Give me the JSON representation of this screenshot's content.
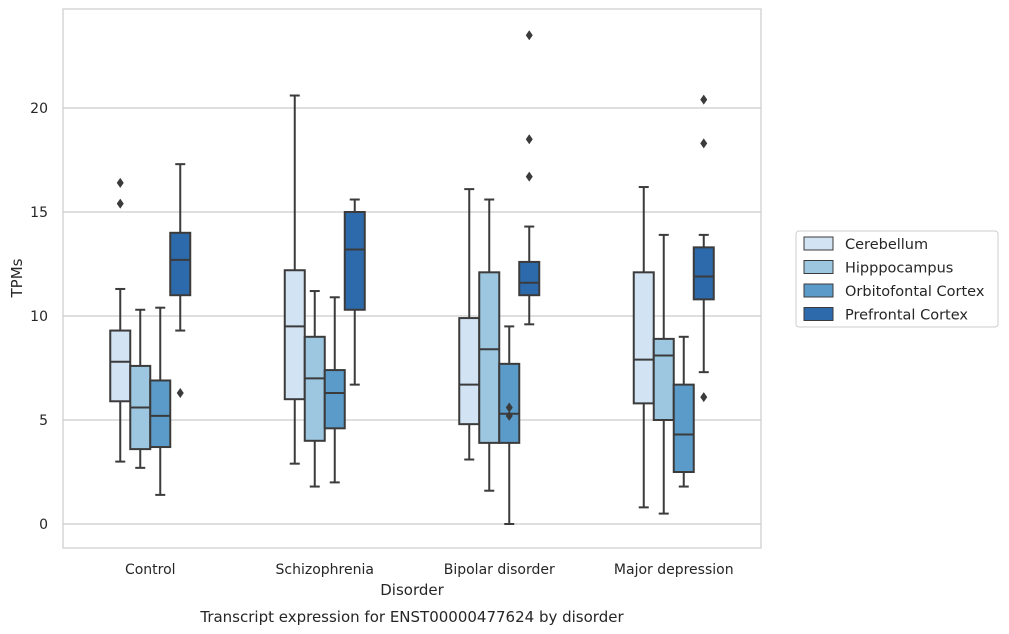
{
  "chart_data": {
    "type": "boxplot",
    "title": "Transcript expression for ENST00000477624 by disorder",
    "xlabel": "Disorder",
    "ylabel": "TPMs",
    "ylim": [
      -1.1,
      24.8
    ],
    "yticks": [
      0,
      5,
      10,
      15,
      20
    ],
    "grid": true,
    "legend_position": "right",
    "categories": [
      "Control",
      "Schizophrenia",
      "Bipolar disorder",
      "Major depression"
    ],
    "series": [
      {
        "name": "Cerebellum",
        "color": "#d2e3f3",
        "boxes": [
          {
            "whislo": 3.0,
            "q1": 5.9,
            "med": 7.8,
            "q3": 9.3,
            "whishi": 11.3,
            "fliers": [
              15.4,
              16.4
            ]
          },
          {
            "whislo": 2.9,
            "q1": 6.0,
            "med": 9.5,
            "q3": 12.2,
            "whishi": 20.6,
            "fliers": []
          },
          {
            "whislo": 3.1,
            "q1": 4.8,
            "med": 6.7,
            "q3": 9.9,
            "whishi": 16.1,
            "fliers": []
          },
          {
            "whislo": 0.8,
            "q1": 5.8,
            "med": 7.9,
            "q3": 12.1,
            "whishi": 16.2,
            "fliers": []
          }
        ]
      },
      {
        "name": "Hipppocampus",
        "color": "#9dc7e0",
        "boxes": [
          {
            "whislo": 2.7,
            "q1": 3.6,
            "med": 5.6,
            "q3": 7.6,
            "whishi": 10.3,
            "fliers": []
          },
          {
            "whislo": 1.8,
            "q1": 4.0,
            "med": 7.0,
            "q3": 9.0,
            "whishi": 11.2,
            "fliers": []
          },
          {
            "whislo": 1.6,
            "q1": 3.9,
            "med": 8.4,
            "q3": 12.1,
            "whishi": 15.6,
            "fliers": []
          },
          {
            "whislo": 0.5,
            "q1": 5.0,
            "med": 8.1,
            "q3": 8.9,
            "whishi": 13.9,
            "fliers": []
          }
        ]
      },
      {
        "name": "Orbitofontal Cortex",
        "color": "#5a9bc9",
        "boxes": [
          {
            "whislo": 1.4,
            "q1": 3.7,
            "med": 5.2,
            "q3": 6.9,
            "whishi": 10.4,
            "fliers": []
          },
          {
            "whislo": 2.0,
            "q1": 4.6,
            "med": 6.3,
            "q3": 7.4,
            "whishi": 10.9,
            "fliers": []
          },
          {
            "whislo": 0.0,
            "q1": 3.9,
            "med": 5.3,
            "q3": 7.7,
            "whishi": 9.5,
            "fliers": [
              5.2,
              5.6
            ]
          },
          {
            "whislo": 1.8,
            "q1": 2.5,
            "med": 4.3,
            "q3": 6.7,
            "whishi": 9.0,
            "fliers": []
          }
        ]
      },
      {
        "name": "Prefrontal Cortex",
        "color": "#2d6aab",
        "boxes": [
          {
            "whislo": 9.3,
            "q1": 11.0,
            "med": 12.7,
            "q3": 14.0,
            "whishi": 17.3,
            "fliers": [
              6.3
            ]
          },
          {
            "whislo": 6.7,
            "q1": 10.3,
            "med": 13.2,
            "q3": 15.0,
            "whishi": 15.6,
            "fliers": []
          },
          {
            "whislo": 9.6,
            "q1": 11.0,
            "med": 11.6,
            "q3": 12.6,
            "whishi": 14.3,
            "fliers": [
              16.7,
              18.5,
              23.5
            ]
          },
          {
            "whislo": 7.3,
            "q1": 10.8,
            "med": 11.9,
            "q3": 13.3,
            "whishi": 13.9,
            "fliers": [
              6.1,
              18.3,
              20.4
            ]
          }
        ]
      }
    ]
  }
}
